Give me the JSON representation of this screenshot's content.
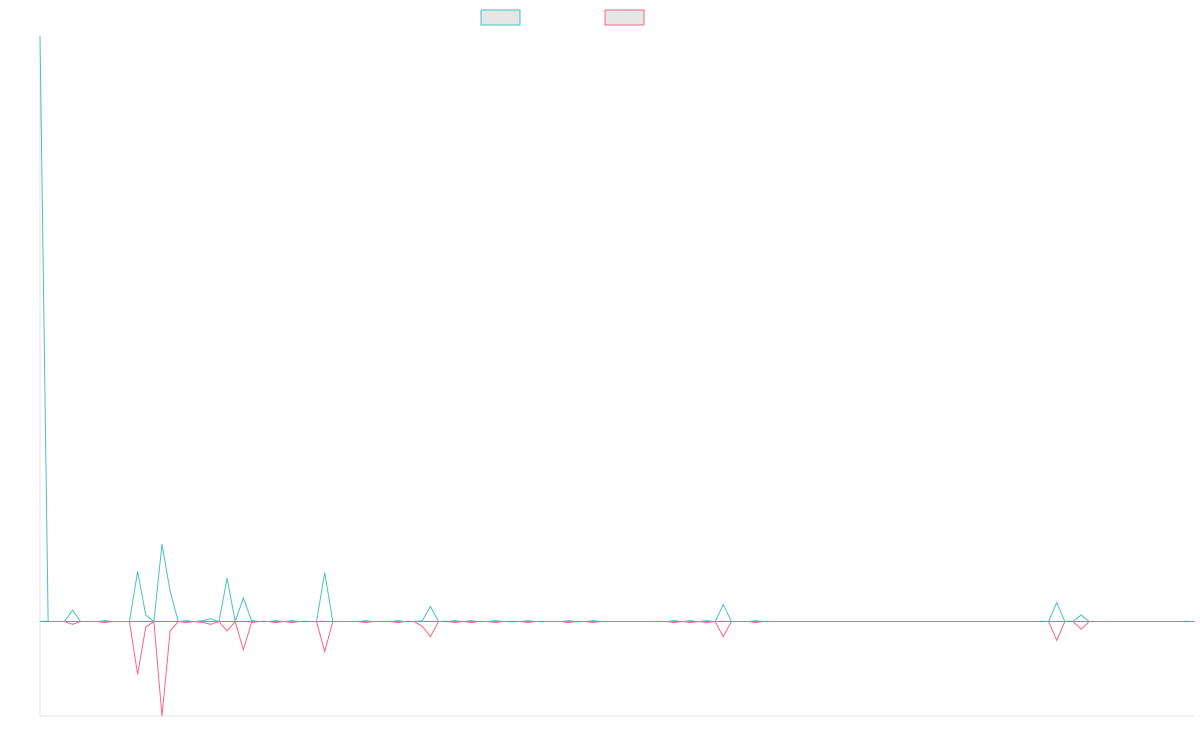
{
  "chart_data": {
    "type": "line",
    "title": "",
    "xlabel": "",
    "ylabel": "",
    "grid": false,
    "legend_position": "top-center",
    "ylim": [
      -100,
      620
    ],
    "x": [
      0,
      1,
      2,
      3,
      4,
      5,
      6,
      7,
      8,
      9,
      10,
      11,
      12,
      13,
      14,
      15,
      16,
      17,
      18,
      19,
      20,
      21,
      22,
      23,
      24,
      25,
      26,
      27,
      28,
      29,
      30,
      31,
      32,
      33,
      34,
      35,
      36,
      37,
      38,
      39,
      40,
      41,
      42,
      43,
      44,
      45,
      46,
      47,
      48,
      49,
      50,
      51,
      52,
      53,
      54,
      55,
      56,
      57,
      58,
      59,
      60,
      61,
      62,
      63,
      64,
      65,
      66,
      67,
      68,
      69,
      70,
      71,
      72,
      73,
      74,
      75,
      76,
      77,
      78,
      79,
      80,
      81,
      82,
      83,
      84,
      85,
      86,
      87,
      88,
      89,
      90,
      91,
      92,
      93,
      94,
      95,
      96,
      97,
      98,
      99,
      100,
      101,
      102,
      103,
      104,
      105,
      106,
      107,
      108,
      109,
      110,
      111,
      112,
      113,
      114,
      115,
      116,
      117,
      118,
      119,
      120,
      121,
      122,
      123,
      124,
      125,
      126,
      127,
      128,
      129,
      130,
      131,
      132,
      133,
      134,
      135,
      136,
      137,
      138,
      139,
      140,
      141,
      142
    ],
    "series": [
      {
        "color": "#4bc0c0",
        "values": [
          620,
          0,
          0,
          0,
          12,
          0,
          0,
          0,
          1,
          0,
          0,
          0,
          53,
          7,
          0,
          82,
          32,
          0,
          1,
          0,
          1,
          3,
          0,
          46,
          0,
          25,
          1,
          0,
          0,
          1,
          0,
          1,
          0,
          0,
          0,
          52,
          0,
          0,
          0,
          0,
          1,
          0,
          0,
          0,
          1,
          0,
          0,
          1,
          16,
          0,
          0,
          1,
          0,
          1,
          0,
          0,
          1,
          0,
          0,
          0,
          1,
          0,
          0,
          0,
          0,
          1,
          0,
          0,
          1,
          0,
          0,
          0,
          0,
          0,
          0,
          0,
          0,
          0,
          1,
          0,
          1,
          0,
          1,
          0,
          18,
          0,
          0,
          0,
          1,
          0,
          0,
          0,
          0,
          0,
          0,
          0,
          0,
          0,
          0,
          0,
          0,
          0,
          0,
          0,
          0,
          0,
          0,
          0,
          0,
          0,
          0,
          0,
          0,
          0,
          0,
          0,
          0,
          0,
          0,
          0,
          0,
          0,
          0,
          0,
          0,
          20,
          0,
          0,
          7,
          0,
          0,
          0,
          0,
          0,
          0,
          0,
          0,
          0,
          0,
          0,
          0,
          0,
          0
        ]
      },
      {
        "color": "#ff6384",
        "values": [
          0,
          0,
          0,
          0,
          -3,
          0,
          0,
          0,
          -1,
          0,
          0,
          0,
          -56,
          -6,
          0,
          -100,
          -10,
          0,
          -1,
          0,
          -1,
          -3,
          0,
          -10,
          0,
          -30,
          -1,
          0,
          0,
          -1,
          0,
          -1,
          0,
          0,
          0,
          -32,
          0,
          0,
          0,
          0,
          -1,
          0,
          0,
          0,
          -1,
          0,
          0,
          -5,
          -16,
          0,
          0,
          -1,
          0,
          -1,
          0,
          0,
          -1,
          0,
          0,
          0,
          -1,
          0,
          0,
          0,
          0,
          -1,
          0,
          0,
          -1,
          0,
          0,
          0,
          0,
          0,
          0,
          0,
          0,
          0,
          -1,
          0,
          -1,
          0,
          -1,
          0,
          -16,
          0,
          0,
          0,
          -1,
          0,
          0,
          0,
          0,
          0,
          0,
          0,
          0,
          0,
          0,
          0,
          0,
          0,
          0,
          0,
          0,
          0,
          0,
          0,
          0,
          0,
          0,
          0,
          0,
          0,
          0,
          0,
          0,
          0,
          0,
          0,
          0,
          0,
          0,
          0,
          0,
          -20,
          0,
          0,
          -8,
          0,
          0,
          0,
          0,
          0,
          0,
          0,
          0,
          0,
          0,
          0,
          0,
          0,
          0
        ]
      }
    ]
  }
}
